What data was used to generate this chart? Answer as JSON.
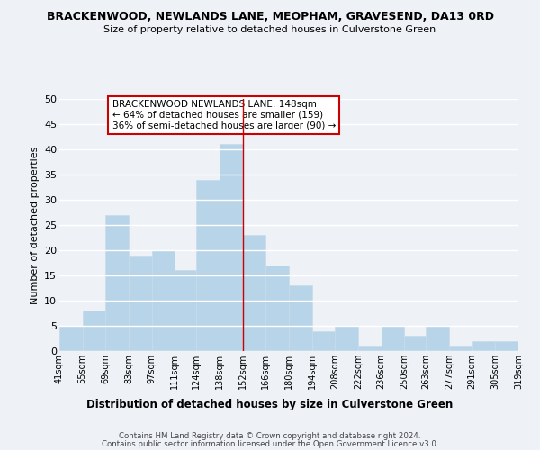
{
  "title": "BRACKENWOOD, NEWLANDS LANE, MEOPHAM, GRAVESEND, DA13 0RD",
  "subtitle": "Size of property relative to detached houses in Culverstone Green",
  "xlabel": "Distribution of detached houses by size in Culverstone Green",
  "ylabel": "Number of detached properties",
  "bin_edges": [
    41,
    55,
    69,
    83,
    97,
    111,
    124,
    138,
    152,
    166,
    180,
    194,
    208,
    222,
    236,
    250,
    263,
    277,
    291,
    305,
    319
  ],
  "counts": [
    5,
    8,
    27,
    19,
    20,
    16,
    34,
    41,
    23,
    17,
    13,
    4,
    5,
    1,
    5,
    3,
    5,
    1,
    2,
    2
  ],
  "bar_color": "#b8d4e8",
  "bar_edge_color": "#c8dce8",
  "marker_color": "#cc0000",
  "ylim": [
    0,
    50
  ],
  "yticks": [
    0,
    5,
    10,
    15,
    20,
    25,
    30,
    35,
    40,
    45,
    50
  ],
  "tick_labels": [
    "41sqm",
    "55sqm",
    "69sqm",
    "83sqm",
    "97sqm",
    "111sqm",
    "124sqm",
    "138sqm",
    "152sqm",
    "166sqm",
    "180sqm",
    "194sqm",
    "208sqm",
    "222sqm",
    "236sqm",
    "250sqm",
    "263sqm",
    "277sqm",
    "291sqm",
    "305sqm",
    "319sqm"
  ],
  "annotation_title": "BRACKENWOOD NEWLANDS LANE: 148sqm",
  "annotation_line2": "← 64% of detached houses are smaller (159)",
  "annotation_line3": "36% of semi-detached houses are larger (90) →",
  "annotation_box_color": "#ffffff",
  "annotation_edge_color": "#cc0000",
  "footer1": "Contains HM Land Registry data © Crown copyright and database right 2024.",
  "footer2": "Contains public sector information licensed under the Open Government Licence v3.0.",
  "background_color": "#eef2f7",
  "grid_color": "#ffffff"
}
